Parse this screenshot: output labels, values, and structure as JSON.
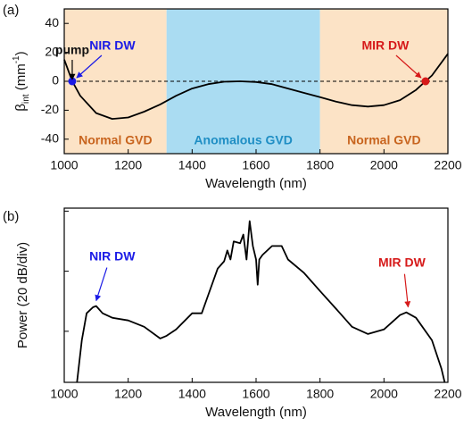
{
  "chart_data": [
    {
      "type": "line",
      "panel": "(a)",
      "xlabel": "Wavelength (nm)",
      "ylabel_parts": [
        "β",
        "int",
        " (mm",
        "-1",
        ")"
      ],
      "xlim": [
        1000,
        2200
      ],
      "xticks": [
        1000,
        1200,
        1400,
        1600,
        1800,
        2000,
        2200
      ],
      "ylim": [
        -50,
        50
      ],
      "yticks": [
        -40,
        -20,
        0,
        20,
        40
      ],
      "reference_line": 0,
      "regions": [
        {
          "x0": 1000,
          "x1": 1320,
          "color": "#fce3c6",
          "label": "Normal GVD",
          "label_color": "#c8641e"
        },
        {
          "x0": 1320,
          "x1": 1800,
          "color": "#aadcf2",
          "label": "Anomalous GVD",
          "label_color": "#1f8ec4"
        },
        {
          "x0": 1800,
          "x1": 2200,
          "color": "#fce3c6",
          "label": "Normal GVD",
          "label_color": "#c8641e"
        }
      ],
      "points": [
        {
          "name": "NIR DW",
          "x": 1025,
          "y": 0,
          "color": "#1a1ae6"
        },
        {
          "name": "MIR DW",
          "x": 2130,
          "y": 0,
          "color": "#d61a1a"
        }
      ],
      "annotation": "pump",
      "series": [
        {
          "color": "#000000",
          "x": [
            1000,
            1025,
            1050,
            1100,
            1150,
            1200,
            1250,
            1300,
            1350,
            1400,
            1450,
            1500,
            1550,
            1600,
            1650,
            1700,
            1750,
            1800,
            1850,
            1900,
            1950,
            2000,
            2050,
            2100,
            2130,
            2150,
            2200
          ],
          "values": [
            15,
            0,
            -10,
            -22,
            -26,
            -25,
            -21,
            -16,
            -10,
            -5,
            -2,
            -0.3,
            0,
            -0.5,
            -2,
            -5,
            -8,
            -11,
            -14,
            -16.5,
            -17.5,
            -16.5,
            -13,
            -6,
            0,
            4,
            19
          ]
        }
      ]
    },
    {
      "type": "line",
      "panel": "(b)",
      "xlabel": "Wavelength (nm)",
      "ylabel": "Power (20 dB/div)",
      "xlim": [
        1000,
        2200
      ],
      "xticks": [
        1000,
        1200,
        1400,
        1600,
        1800,
        2000,
        2200
      ],
      "ylim": [
        -57,
        1
      ],
      "yticks": [
        -40,
        -20,
        0
      ],
      "points": [
        {
          "name": "NIR DW",
          "x": 1100,
          "y": -31.6,
          "color": "#1a1ae6"
        },
        {
          "name": "MIR DW",
          "x": 2070,
          "y": -33.7,
          "color": "#d61a1a"
        }
      ],
      "series": [
        {
          "color": "#000000",
          "x": [
            1040,
            1055,
            1070,
            1090,
            1100,
            1120,
            1150,
            1200,
            1250,
            1300,
            1320,
            1350,
            1400,
            1430,
            1450,
            1480,
            1500,
            1510,
            1520,
            1530,
            1550,
            1560,
            1570,
            1580,
            1590,
            1600,
            1605,
            1610,
            1620,
            1650,
            1680,
            1700,
            1750,
            1800,
            1850,
            1900,
            1950,
            2000,
            2050,
            2070,
            2100,
            2150,
            2180,
            2190
          ],
          "values": [
            -57,
            -43,
            -34,
            -32,
            -31.6,
            -34,
            -35.5,
            -36.4,
            -38.5,
            -42.4,
            -41.5,
            -39.4,
            -34,
            -34,
            -28,
            -19.1,
            -16.7,
            -13.1,
            -16.1,
            -10.1,
            -10.7,
            -7.8,
            -16.1,
            -3.3,
            -11.6,
            -16.1,
            -24.5,
            -16.1,
            -14.6,
            -11.6,
            -11.6,
            -16.1,
            -20.6,
            -26.6,
            -32.5,
            -38.5,
            -40.9,
            -39.4,
            -34.6,
            -33.7,
            -35.5,
            -43,
            -52.5,
            -57
          ]
        }
      ]
    }
  ]
}
